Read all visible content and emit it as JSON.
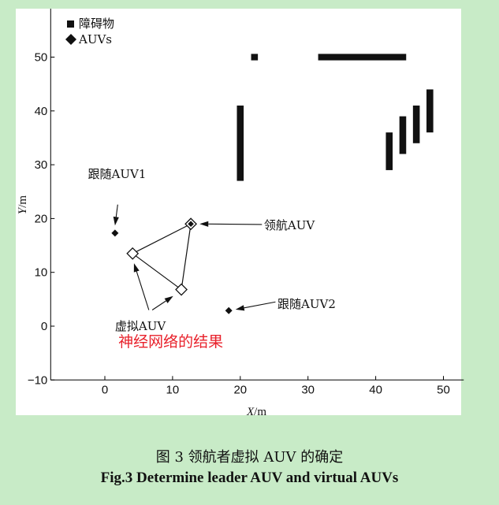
{
  "chart_data": {
    "type": "scatter",
    "xlim": [
      -8,
      53
    ],
    "ylim": [
      -10,
      59
    ],
    "x_ticks": [
      0,
      10,
      20,
      30,
      40,
      50
    ],
    "y_ticks": [
      -10,
      0,
      10,
      20,
      30,
      40,
      50
    ],
    "x_tick_labels": [
      "0",
      "10",
      "20",
      "30",
      "40",
      "50"
    ],
    "y_tick_labels": [
      "−10",
      "0",
      "10",
      "20",
      "30",
      "40",
      "50"
    ],
    "xlabel": {
      "var": "X",
      "unit": "/m"
    },
    "ylabel": {
      "var": "Y",
      "unit": "/m"
    },
    "legend": {
      "position": "top-left",
      "entries": [
        {
          "marker": "square",
          "label": "障碍物"
        },
        {
          "marker": "diamond",
          "label": "AUVs"
        }
      ]
    },
    "obstacles": [
      {
        "x0": 21.6,
        "x1": 22.6,
        "y0": 49.4,
        "y1": 50.6
      },
      {
        "x0": 31.5,
        "x1": 44.5,
        "y0": 49.4,
        "y1": 50.6
      },
      {
        "x0": 19.5,
        "x1": 20.5,
        "y0": 27,
        "y1": 41
      },
      {
        "x0": 41.5,
        "x1": 42.5,
        "y0": 29,
        "y1": 36
      },
      {
        "x0": 43.5,
        "x1": 44.5,
        "y0": 32,
        "y1": 39
      },
      {
        "x0": 45.5,
        "x1": 46.5,
        "y0": 34,
        "y1": 41
      },
      {
        "x0": 47.5,
        "x1": 48.5,
        "y0": 36,
        "y1": 44
      }
    ],
    "auvs": [
      {
        "role": "follower",
        "x": 1.5,
        "y": 17.3
      },
      {
        "role": "follower",
        "x": 18.3,
        "y": 2.9
      },
      {
        "role": "leader",
        "x": 12.7,
        "y": 19.0
      },
      {
        "role": "virtual",
        "x": 4.1,
        "y": 13.5
      },
      {
        "role": "virtual",
        "x": 11.3,
        "y": 6.8
      }
    ],
    "triangle": [
      [
        12.7,
        19.0
      ],
      [
        4.1,
        13.5
      ],
      [
        11.3,
        6.8
      ]
    ],
    "annotations": [
      {
        "text": "跟随AUV1",
        "text_x": -2.5,
        "text_y": 27.5,
        "arrow_from": [
          1.9,
          22.6
        ],
        "arrow_to": [
          1.5,
          18.7
        ]
      },
      {
        "text": "领航AUV",
        "text_x": 23.5,
        "text_y": 18.0,
        "arrow_from": [
          23.2,
          18.9
        ],
        "arrow_to": [
          14.0,
          19.0
        ]
      },
      {
        "text": "跟随AUV2",
        "text_x": 25.5,
        "text_y": 3.4,
        "arrow_from": [
          25.2,
          4.5
        ],
        "arrow_to": [
          19.3,
          3.1
        ]
      },
      {
        "text": "虚拟AUV",
        "text_x": 1.5,
        "text_y": -0.7,
        "arrows": [
          {
            "from": [
              6.5,
              3.0
            ],
            "to": [
              4.3,
              11.7
            ]
          },
          {
            "from": [
              7.0,
              3.0
            ],
            "to": [
              10.1,
              5.6
            ]
          }
        ]
      }
    ],
    "red_note": {
      "text": "神经网络的结果",
      "x": 2.0,
      "y": -3.8
    }
  },
  "caption": {
    "cn": "图 3  领航者虚拟 AUV 的确定",
    "en": "Fig.3 Determine leader AUV and virtual AUVs"
  }
}
